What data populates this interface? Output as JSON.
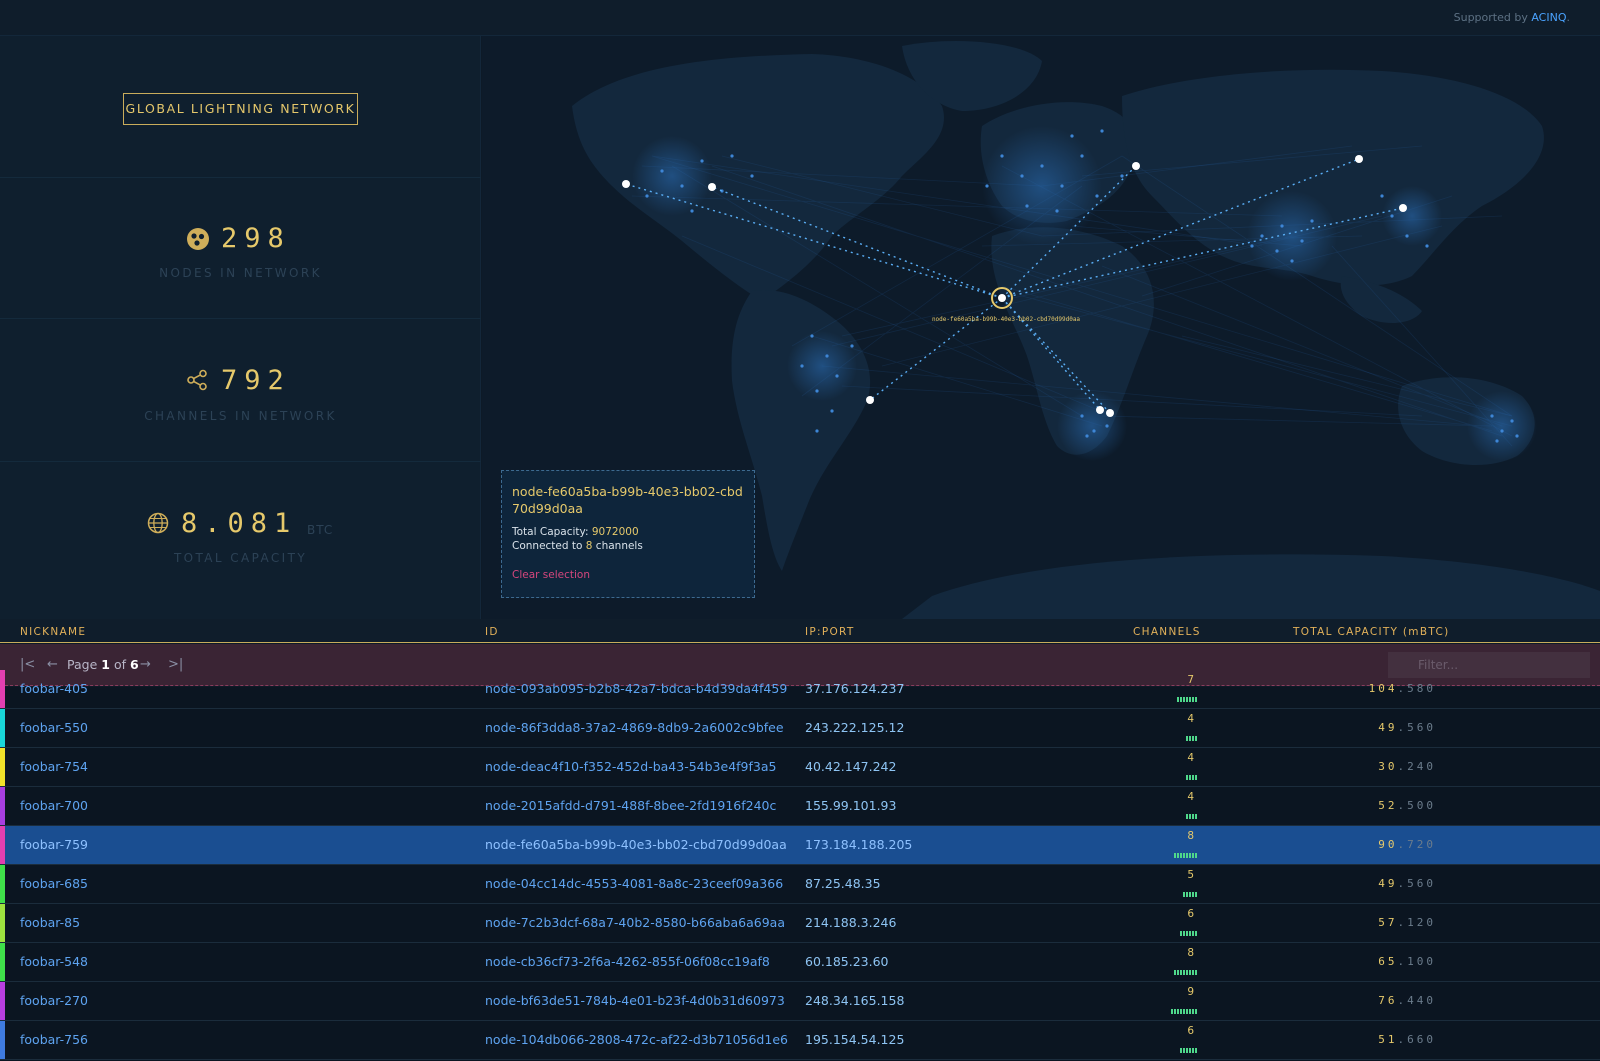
{
  "header": {
    "supported_prefix": "Supported by",
    "supported_brand": "ACINQ",
    "supported_suffix": "."
  },
  "title": "GLOBAL LIGHTNING NETWORK",
  "stats": {
    "nodes": {
      "value": "298",
      "label": "NODES IN NETWORK",
      "icon": "nodes-icon"
    },
    "channels": {
      "value": "792",
      "label": "CHANNELS IN NETWORK",
      "icon": "share-icon"
    },
    "capacity": {
      "value": "8.081",
      "unit": "BTC",
      "label": "TOTAL CAPACITY",
      "icon": "globe-icon"
    }
  },
  "map": {
    "selected_label": "node-fe60a5ba-b99b-40e3-bb02-cbd70d99d0aa",
    "colors": {
      "dots": "#3e86d6",
      "selected": "#e6c96b",
      "connection": "#5aaef5"
    }
  },
  "tooltip": {
    "title": "node-fe60a5ba-b99b-40e3-bb02-cbd70d99d0aa",
    "capacity_label": "Total Capacity:",
    "capacity_value": "9072000",
    "connected_prefix": "Connected to",
    "connected_value": "8",
    "connected_suffix": "channels",
    "clear": "Clear selection"
  },
  "table": {
    "columns": [
      "NICKNAME",
      "ID",
      "IP:PORT",
      "CHANNELS",
      "TOTAL CAPACITY (mBTC)"
    ],
    "pager": {
      "page_word": "Page",
      "current": "1",
      "of_word": "of",
      "total": "6"
    },
    "filter_placeholder": "Filter...",
    "rows": [
      {
        "nickname": "foobar-405",
        "id": "node-093ab095-b2b8-42a7-bdca-b4d39da4f459",
        "ip": "37.176.124.237",
        "channels": "7",
        "cap_int": "104",
        "cap_frac": "580",
        "color": "#e23fb0",
        "selected": false
      },
      {
        "nickname": "foobar-550",
        "id": "node-86f3dda8-37a2-4869-8db9-2a6002c9bfee",
        "ip": "243.222.125.12",
        "channels": "4",
        "cap_int": "49",
        "cap_frac": "560",
        "color": "#19d7d9",
        "selected": false
      },
      {
        "nickname": "foobar-754",
        "id": "node-deac4f10-f352-452d-ba43-54b3e4f9f3a5",
        "ip": "40.42.147.242",
        "channels": "4",
        "cap_int": "30",
        "cap_frac": "240",
        "color": "#f1e22a",
        "selected": false
      },
      {
        "nickname": "foobar-700",
        "id": "node-2015afdd-d791-488f-8bee-2fd1916f240c",
        "ip": "155.99.101.93",
        "channels": "4",
        "cap_int": "52",
        "cap_frac": "500",
        "color": "#a83ee0",
        "selected": false
      },
      {
        "nickname": "foobar-759",
        "id": "node-fe60a5ba-b99b-40e3-bb02-cbd70d99d0aa",
        "ip": "173.184.188.205",
        "channels": "8",
        "cap_int": "90",
        "cap_frac": "720",
        "color": "#e23fb0",
        "selected": true
      },
      {
        "nickname": "foobar-685",
        "id": "node-04cc14dc-4553-4081-8a8c-23ceef09a366",
        "ip": "87.25.48.35",
        "channels": "5",
        "cap_int": "49",
        "cap_frac": "560",
        "color": "#3fe04a",
        "selected": false
      },
      {
        "nickname": "foobar-85",
        "id": "node-7c2b3dcf-68a7-40b2-8580-b66aba6a69aa",
        "ip": "214.188.3.246",
        "channels": "6",
        "cap_int": "57",
        "cap_frac": "120",
        "color": "#9ee23f",
        "selected": false
      },
      {
        "nickname": "foobar-548",
        "id": "node-cb36cf73-2f6a-4262-855f-06f08cc19af8",
        "ip": "60.185.23.60",
        "channels": "8",
        "cap_int": "65",
        "cap_frac": "100",
        "color": "#3fe04a",
        "selected": false
      },
      {
        "nickname": "foobar-270",
        "id": "node-bf63de51-784b-4e01-b23f-4d0b31d60973",
        "ip": "248.34.165.158",
        "channels": "9",
        "cap_int": "76",
        "cap_frac": "440",
        "color": "#b93ee0",
        "selected": false
      },
      {
        "nickname": "foobar-756",
        "id": "node-104db066-2808-472c-af22-d3b71056d1e6",
        "ip": "195.154.54.125",
        "channels": "6",
        "cap_int": "51",
        "cap_frac": "660",
        "color": "#3f7be0",
        "selected": false
      }
    ]
  }
}
